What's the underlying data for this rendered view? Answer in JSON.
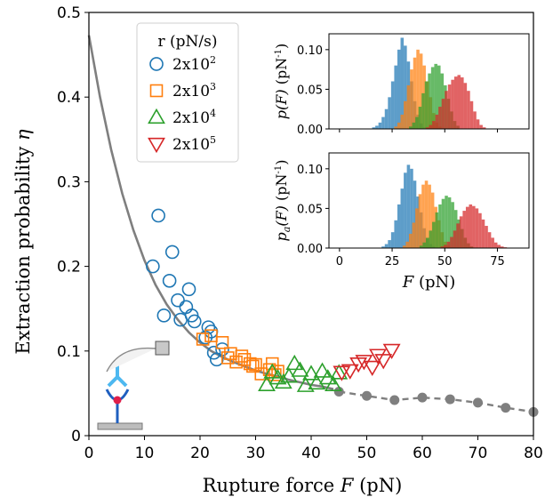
{
  "chart_data": [
    {
      "type": "scatter",
      "xlabel_text": "Rupture force ",
      "xlabel_var": "F",
      "xlabel_unit": " (pN)",
      "ylabel_text": "Extraction probability ",
      "ylabel_var": "η",
      "xlim": [
        0,
        80
      ],
      "ylim": [
        0,
        0.5
      ],
      "xticks": [
        0,
        10,
        20,
        30,
        40,
        50,
        60,
        70,
        80
      ],
      "yticks": [
        "0",
        "0.1",
        "0.2",
        "0.3",
        "0.4",
        "0.5"
      ],
      "legend": {
        "title": "r (pN/s)",
        "placement": "upper-left",
        "entries": [
          {
            "base": "2x10",
            "exp": "2"
          },
          {
            "base": "2x10",
            "exp": "3"
          },
          {
            "base": "2x10",
            "exp": "4"
          },
          {
            "base": "2x10",
            "exp": "5"
          }
        ]
      },
      "series": [
        {
          "marker": "circle",
          "color": "#1f77b4",
          "points": [
            [
              11.5,
              0.2
            ],
            [
              12.5,
              0.26
            ],
            [
              13.5,
              0.142
            ],
            [
              14.5,
              0.183
            ],
            [
              15,
              0.217
            ],
            [
              16,
              0.16
            ],
            [
              16.5,
              0.137
            ],
            [
              17.5,
              0.152
            ],
            [
              18,
              0.173
            ],
            [
              18.5,
              0.142
            ],
            [
              19,
              0.135
            ],
            [
              21,
              0.116
            ],
            [
              21.5,
              0.128
            ],
            [
              22,
              0.123
            ],
            [
              22.5,
              0.098
            ],
            [
              23,
              0.09
            ],
            [
              24,
              0.102
            ]
          ]
        },
        {
          "marker": "square",
          "color": "#ff7f0e",
          "points": [
            [
              20.5,
              0.114
            ],
            [
              22,
              0.118
            ],
            [
              24,
              0.11
            ],
            [
              25,
              0.092
            ],
            [
              25.5,
              0.097
            ],
            [
              26.5,
              0.087
            ],
            [
              27.5,
              0.094
            ],
            [
              28,
              0.09
            ],
            [
              29,
              0.085
            ],
            [
              29.5,
              0.082
            ],
            [
              30,
              0.084
            ],
            [
              31,
              0.073
            ],
            [
              32.5,
              0.078
            ],
            [
              33,
              0.085
            ],
            [
              33.5,
              0.072
            ],
            [
              34,
              0.076
            ]
          ]
        },
        {
          "marker": "triangle-up",
          "color": "#2ca02c",
          "points": [
            [
              32,
              0.06
            ],
            [
              33,
              0.075
            ],
            [
              34,
              0.068
            ],
            [
              35,
              0.063
            ],
            [
              36,
              0.07
            ],
            [
              37,
              0.085
            ],
            [
              38,
              0.077
            ],
            [
              39,
              0.059
            ],
            [
              40,
              0.073
            ],
            [
              41,
              0.062
            ],
            [
              42,
              0.076
            ],
            [
              43,
              0.068
            ],
            [
              44,
              0.06
            ],
            [
              45,
              0.074
            ]
          ]
        },
        {
          "marker": "triangle-down",
          "color": "#d62728",
          "points": [
            [
              45.5,
              0.075
            ],
            [
              47,
              0.077
            ],
            [
              48.5,
              0.085
            ],
            [
              49.5,
              0.088
            ],
            [
              51,
              0.081
            ],
            [
              52,
              0.095
            ],
            [
              53,
              0.089
            ],
            [
              54.5,
              0.101
            ]
          ]
        }
      ],
      "fit_curve": {
        "color": "#7f7f7f",
        "points": [
          [
            0,
            0.473
          ],
          [
            2,
            0.4
          ],
          [
            4,
            0.338
          ],
          [
            6,
            0.286
          ],
          [
            8,
            0.243
          ],
          [
            10,
            0.207
          ],
          [
            12,
            0.178
          ],
          [
            14,
            0.155
          ],
          [
            16,
            0.137
          ],
          [
            18,
            0.122
          ],
          [
            20,
            0.11
          ],
          [
            22,
            0.1
          ],
          [
            24,
            0.093
          ],
          [
            26,
            0.087
          ],
          [
            28,
            0.082
          ],
          [
            30,
            0.077
          ],
          [
            32,
            0.073
          ],
          [
            34,
            0.07
          ],
          [
            36,
            0.066
          ],
          [
            38,
            0.063
          ],
          [
            40,
            0.06
          ],
          [
            42,
            0.058
          ],
          [
            44,
            0.055
          ]
        ]
      },
      "dashed_curve": {
        "color": "#7f7f7f",
        "points": [
          [
            45,
            0.052
          ],
          [
            50,
            0.047
          ],
          [
            55,
            0.042
          ],
          [
            60,
            0.045
          ],
          [
            65,
            0.043
          ],
          [
            70,
            0.039
          ],
          [
            75,
            0.033
          ],
          [
            80,
            0.028
          ]
        ]
      }
    },
    {
      "type": "bar",
      "panel": "inset-top",
      "ylabel_var": "p(F)",
      "ylabel_unit": "(pN",
      "ylabel_exp": "-1",
      "ylim": [
        0,
        0.12
      ],
      "yticks": [
        "0.00",
        "0.05",
        "0.10"
      ],
      "xlim": [
        -5,
        90
      ],
      "series": [
        {
          "color": "#1f77b4",
          "x_start": 15.5,
          "bin_width": 1.5,
          "values": [
            0.002,
            0.004,
            0.008,
            0.015,
            0.025,
            0.04,
            0.06,
            0.08,
            0.1,
            0.115,
            0.105,
            0.085,
            0.06,
            0.035,
            0.018,
            0.007,
            0.002
          ]
        },
        {
          "color": "#ff7f0e",
          "x_start": 26,
          "bin_width": 1.5,
          "values": [
            0.003,
            0.008,
            0.018,
            0.035,
            0.055,
            0.075,
            0.09,
            0.1,
            0.095,
            0.08,
            0.06,
            0.04,
            0.02,
            0.008,
            0.003
          ]
        },
        {
          "color": "#2ca02c",
          "x_start": 33,
          "bin_width": 1.5,
          "values": [
            0.003,
            0.008,
            0.015,
            0.028,
            0.045,
            0.06,
            0.07,
            0.078,
            0.082,
            0.08,
            0.07,
            0.055,
            0.038,
            0.022,
            0.01,
            0.004
          ]
        },
        {
          "color": "#d62728",
          "x_start": 41,
          "bin_width": 1.5,
          "values": [
            0.002,
            0.005,
            0.01,
            0.018,
            0.028,
            0.038,
            0.048,
            0.056,
            0.062,
            0.066,
            0.068,
            0.065,
            0.058,
            0.048,
            0.035,
            0.022,
            0.012,
            0.005,
            0.002
          ]
        }
      ]
    },
    {
      "type": "bar",
      "panel": "inset-bottom",
      "ylabel_var": "p",
      "ylabel_sub": "a",
      "ylabel_rest": "(F)",
      "ylabel_unit": "(pN",
      "ylabel_exp": "-1",
      "xlabel_var": "F",
      "xlabel_unit": " (pN)",
      "ylim": [
        0,
        0.12
      ],
      "yticks": [
        "0.00",
        "0.05",
        "0.10"
      ],
      "xlim": [
        -5,
        90
      ],
      "xticks": [
        0,
        25,
        50,
        75
      ],
      "series": [
        {
          "color": "#1f77b4",
          "x_start": 20,
          "bin_width": 1.5,
          "values": [
            0.002,
            0.005,
            0.01,
            0.02,
            0.035,
            0.055,
            0.075,
            0.095,
            0.105,
            0.1,
            0.085,
            0.065,
            0.045,
            0.025,
            0.012,
            0.005,
            0.002
          ]
        },
        {
          "color": "#ff7f0e",
          "x_start": 30,
          "bin_width": 1.5,
          "values": [
            0.003,
            0.008,
            0.018,
            0.032,
            0.05,
            0.068,
            0.08,
            0.085,
            0.08,
            0.07,
            0.052,
            0.035,
            0.02,
            0.008,
            0.003
          ]
        },
        {
          "color": "#2ca02c",
          "x_start": 38,
          "bin_width": 1.5,
          "values": [
            0.003,
            0.007,
            0.013,
            0.022,
            0.033,
            0.045,
            0.055,
            0.062,
            0.066,
            0.064,
            0.058,
            0.048,
            0.036,
            0.024,
            0.013,
            0.006,
            0.002
          ]
        },
        {
          "color": "#d62728",
          "x_start": 48,
          "bin_width": 1.5,
          "values": [
            0.002,
            0.004,
            0.008,
            0.014,
            0.022,
            0.031,
            0.04,
            0.047,
            0.052,
            0.055,
            0.053,
            0.05,
            0.044,
            0.036,
            0.028,
            0.02,
            0.013,
            0.007,
            0.004,
            0.002,
            0.001,
            0.0005,
            0.0003
          ]
        }
      ]
    }
  ]
}
